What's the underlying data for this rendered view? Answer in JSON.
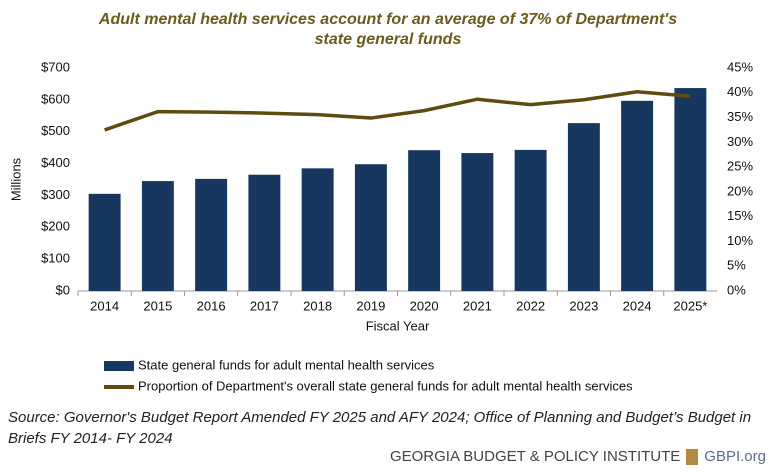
{
  "chart_data": {
    "type": "bar-line",
    "title": "Adult mental health services account for an average of 37% of Department's state general funds",
    "xlabel": "Fiscal Year",
    "ylabel": "Millions",
    "categories": [
      "2014",
      "2015",
      "2016",
      "2017",
      "2018",
      "2019",
      "2020",
      "2021",
      "2022",
      "2023",
      "2024",
      "2025*"
    ],
    "series": [
      {
        "name": "State general funds for adult mental health services",
        "type": "bar",
        "color": "#17375e",
        "values": [
          305,
          345,
          352,
          365,
          385,
          398,
          442,
          433,
          443,
          527,
          597,
          637
        ]
      },
      {
        "name": "Proportion of Department's overall state general funds for adult mental health services",
        "type": "line",
        "axis": "y2",
        "color": "#5e4b10",
        "values": [
          32.5,
          36.2,
          36.1,
          35.9,
          35.6,
          34.9,
          36.4,
          38.7,
          37.6,
          38.6,
          40.2,
          39.3
        ]
      }
    ],
    "ylim": [
      0,
      700
    ],
    "yticks": [
      {
        "value": 0,
        "label": "$0"
      },
      {
        "value": 100,
        "label": "$100"
      },
      {
        "value": 200,
        "label": "$200"
      },
      {
        "value": 300,
        "label": "$300"
      },
      {
        "value": 400,
        "label": "$400"
      },
      {
        "value": 500,
        "label": "$500"
      },
      {
        "value": 600,
        "label": "$600"
      },
      {
        "value": 700,
        "label": "$700"
      }
    ],
    "y2lim": [
      0,
      45
    ],
    "y2ticks": [
      {
        "value": 0,
        "label": "0%"
      },
      {
        "value": 5,
        "label": "5%"
      },
      {
        "value": 10,
        "label": "10%"
      },
      {
        "value": 15,
        "label": "15%"
      },
      {
        "value": 20,
        "label": "20%"
      },
      {
        "value": 25,
        "label": "25%"
      },
      {
        "value": 30,
        "label": "30%"
      },
      {
        "value": 35,
        "label": "35%"
      },
      {
        "value": 40,
        "label": "40%"
      },
      {
        "value": 45,
        "label": "45%"
      }
    ],
    "grid": false
  },
  "source": "Source: Governor's Budget Report Amended FY 2025 and AFY 2024; Office of Planning and Budget’s Budget in Briefs FY 2014- FY 2024",
  "footer": {
    "org": "GEORGIA BUDGET & POLICY INSTITUTE",
    "site": "GBPI.org"
  }
}
